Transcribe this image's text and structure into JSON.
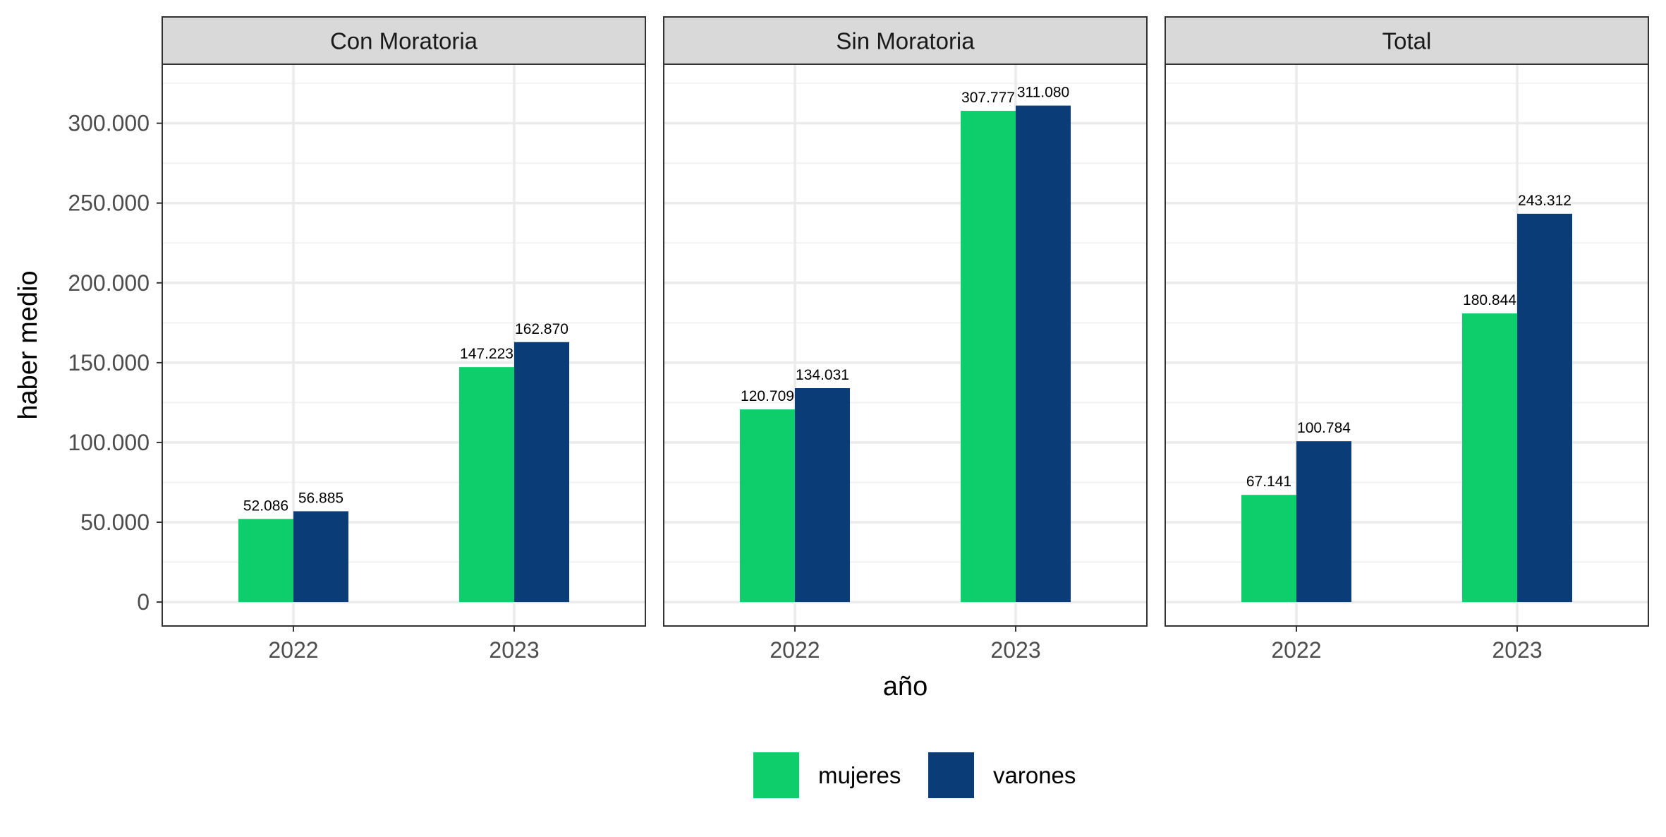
{
  "chart_data": {
    "type": "bar",
    "facets": [
      "Con Moratoria",
      "Sin Moratoria",
      "Total"
    ],
    "categories": [
      "2022",
      "2023"
    ],
    "series": [
      {
        "name": "mujeres",
        "color": "#0DCE6A",
        "values": {
          "Con Moratoria": [
            52086,
            147223
          ],
          "Sin Moratoria": [
            120709,
            307777
          ],
          "Total": [
            67141,
            180844
          ]
        }
      },
      {
        "name": "varones",
        "color": "#0A3C78",
        "values": {
          "Con Moratoria": [
            56885,
            162870
          ],
          "Sin Moratoria": [
            134031,
            311080
          ],
          "Total": [
            100784,
            243312
          ]
        }
      }
    ],
    "data_labels": {
      "mujeres": {
        "Con Moratoria": [
          "52.086",
          "147.223"
        ],
        "Sin Moratoria": [
          "120.709",
          "307.777"
        ],
        "Total": [
          "67.141",
          "180.844"
        ]
      },
      "varones": {
        "Con Moratoria": [
          "56.885",
          "162.870"
        ],
        "Sin Moratoria": [
          "134.031",
          "311.080"
        ],
        "Total": [
          "100.784",
          "243.312"
        ]
      }
    },
    "xlabel": "año",
    "ylabel": "haber medio",
    "ylim": [
      -15000,
      337000
    ],
    "yticks": [
      0,
      50000,
      100000,
      150000,
      200000,
      250000,
      300000
    ],
    "ytick_labels": [
      "0",
      "50.000",
      "100.000",
      "150.000",
      "200.000",
      "250.000",
      "300.000"
    ],
    "grid": true,
    "legend_position": "bottom"
  }
}
